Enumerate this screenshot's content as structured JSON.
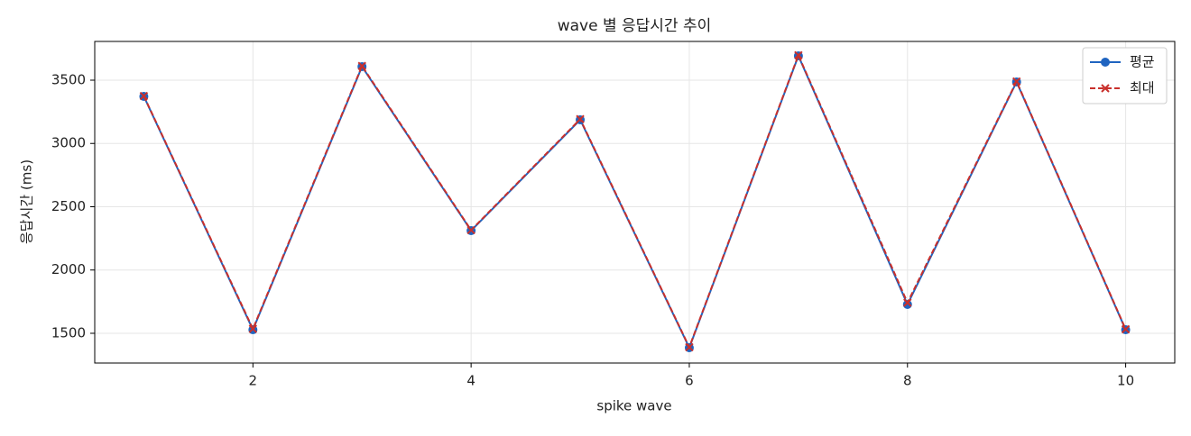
{
  "chart_data": {
    "type": "line",
    "title": "wave 별 응답시간 추이",
    "x_label": "spike wave",
    "y_label": "응답시간 (ms)",
    "x": [
      1,
      2,
      3,
      4,
      5,
      6,
      7,
      8,
      9,
      10
    ],
    "series": [
      {
        "name": "평균",
        "color": "#1f64c0",
        "marker": "o",
        "dash": false,
        "values": [
          3372,
          1528,
          3607,
          2311,
          3187,
          1386,
          3692,
          1728,
          3486,
          1528
        ]
      },
      {
        "name": "최대",
        "color": "#c9302c",
        "marker": "x",
        "dash": true,
        "values": [
          3375,
          1535,
          3612,
          2315,
          3192,
          1390,
          3697,
          1742,
          3490,
          1532
        ]
      }
    ],
    "xlim": [
      0.55,
      10.45
    ],
    "ylim": [
      1265,
      3806
    ],
    "xticks": [
      2,
      4,
      6,
      8,
      10
    ],
    "yticks": [
      1500,
      2000,
      2500,
      3000,
      3500
    ],
    "grid": true,
    "legend": "upper right"
  }
}
